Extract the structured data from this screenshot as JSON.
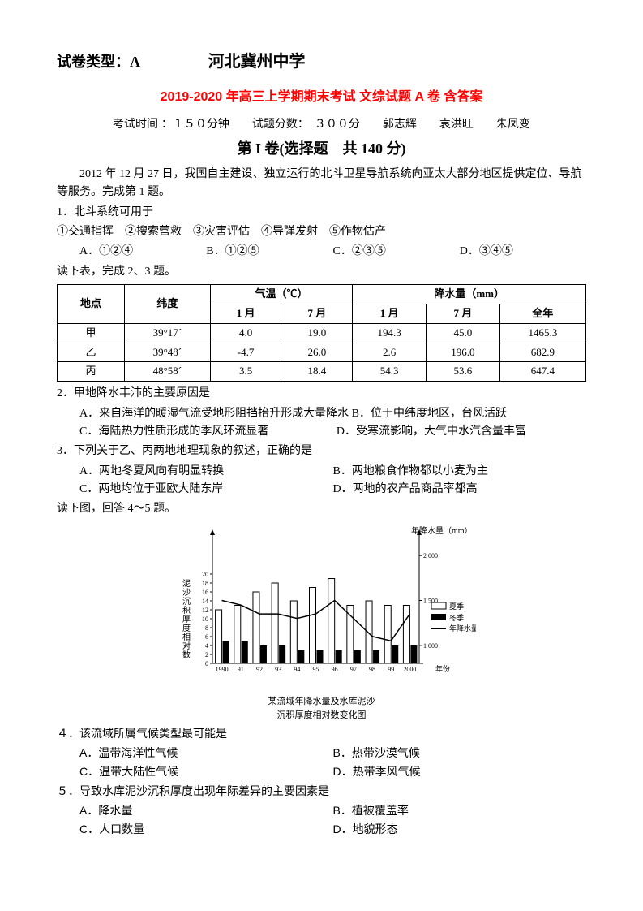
{
  "header": {
    "paper_type_label": "试卷类型：A",
    "school": "河北冀州中学"
  },
  "red_title": "2019-2020 年高三上学期期末考试  文综试题 A 卷  含答案",
  "exam_info": "考试时间 ：１５０分钟　　试题分数：　３００分　　郭志辉　　袁洪旺　　朱凤变",
  "section1": "第 I 卷(选择题　共 140 分)",
  "intro": "2012 年 12 月 27 日，我国自主建设、独立运行的北斗卫星导航系统向亚太大部分地区提供定位、导航等服务。完成第 1 题。",
  "q1": {
    "stem": "1．北斗系统可用于",
    "items": "①交通指挥　②搜索营救　③灾害评估　④导弹发射　⑤作物估产",
    "A": "A．①②④",
    "B": "B．①②⑤",
    "C": "C．②③⑤",
    "D": "D．③④⑤"
  },
  "table_intro": "读下表，完成 2、3 题。",
  "table": {
    "headers": {
      "loc": "地点",
      "lat": "纬度",
      "temp": "气温（℃）",
      "prec": "降水量（mm）",
      "jan": "1 月",
      "jul": "7 月",
      "jan2": "1 月",
      "jul2": "7 月",
      "year": "全年"
    },
    "rows": [
      {
        "loc": "甲",
        "lat": "39°17´",
        "t1": "4.0",
        "t7": "19.0",
        "p1": "194.3",
        "p7": "45.0",
        "py": "1465.3"
      },
      {
        "loc": "乙",
        "lat": "39°48´",
        "t1": "-4.7",
        "t7": "26.0",
        "p1": "2.6",
        "p7": "196.0",
        "py": "682.9"
      },
      {
        "loc": "丙",
        "lat": "48°58´",
        "t1": "3.5",
        "t7": "18.4",
        "p1": "54.3",
        "p7": "53.6",
        "py": "647.4"
      }
    ]
  },
  "q2": {
    "stem": "2．甲地降水丰沛的主要原因是",
    "A": "A．来自海洋的暖湿气流受地形阻挡抬升形成大量降水",
    "B": "B．位于中纬度地区，台风活跃",
    "C": "C．海陆热力性质形成的季风环流显著",
    "D": "D．受寒流影响，大气中水汽含量丰富"
  },
  "q3": {
    "stem": "3．下列关于乙、丙两地地理现象的叙述，正确的是",
    "A": "A．两地冬夏风向有明显转换",
    "B": "B．两地粮食作物都以小麦为主",
    "C": "C．两地均位于亚欧大陆东岸",
    "D": "D．两地的农产品商品率都高"
  },
  "chart_intro": "读下图，回答 4～5 题。",
  "chart": {
    "y_left_label": "泥沙沉积厚度相对数",
    "y_right_label": "年降水量（mm）",
    "y_right_ticks": [
      "2 000",
      "1 500",
      "1 000"
    ],
    "y_left_ticks": [
      "20",
      "18",
      "16",
      "14",
      "12",
      "10",
      "8",
      "6",
      "4",
      "2",
      "0"
    ],
    "x_ticks": [
      "1990",
      "91",
      "92",
      "93",
      "94",
      "95",
      "96",
      "97",
      "98",
      "99",
      "2000"
    ],
    "x_label": "年份",
    "legend": {
      "summer": "夏季",
      "winter": "冬季",
      "line": "年降水量"
    },
    "caption1": "某流域年降水量及水库泥沙",
    "caption2": "沉积厚度相对数变化图",
    "summer_vals": [
      12,
      13,
      16,
      18,
      14,
      17,
      19,
      13,
      14,
      13,
      13
    ],
    "winter_vals": [
      5,
      5,
      4,
      4,
      3,
      3,
      3,
      3,
      3,
      4,
      4
    ],
    "line_vals": [
      1500,
      1450,
      1350,
      1350,
      1300,
      1350,
      1500,
      1300,
      1100,
      1050,
      1350
    ],
    "colors": {
      "summer": "#ffffff",
      "winter": "#000000",
      "line": "#000000",
      "axis": "#000000"
    },
    "bar_stroke": "#000000"
  },
  "q4": {
    "stem": "４．该流域所属气候类型最可能是",
    "A": "A．温带海洋性气候",
    "B": "B．热带沙漠气候",
    "C": "C．温带大陆性气候",
    "D": "D．热带季风气候"
  },
  "q5": {
    "stem": "５．导致水库泥沙沉积厚度出现年际差异的主要因素是",
    "A": "A．降水量",
    "B": "B．植被覆盖率",
    "C": "C．人口数量",
    "D": "D．地貌形态"
  }
}
